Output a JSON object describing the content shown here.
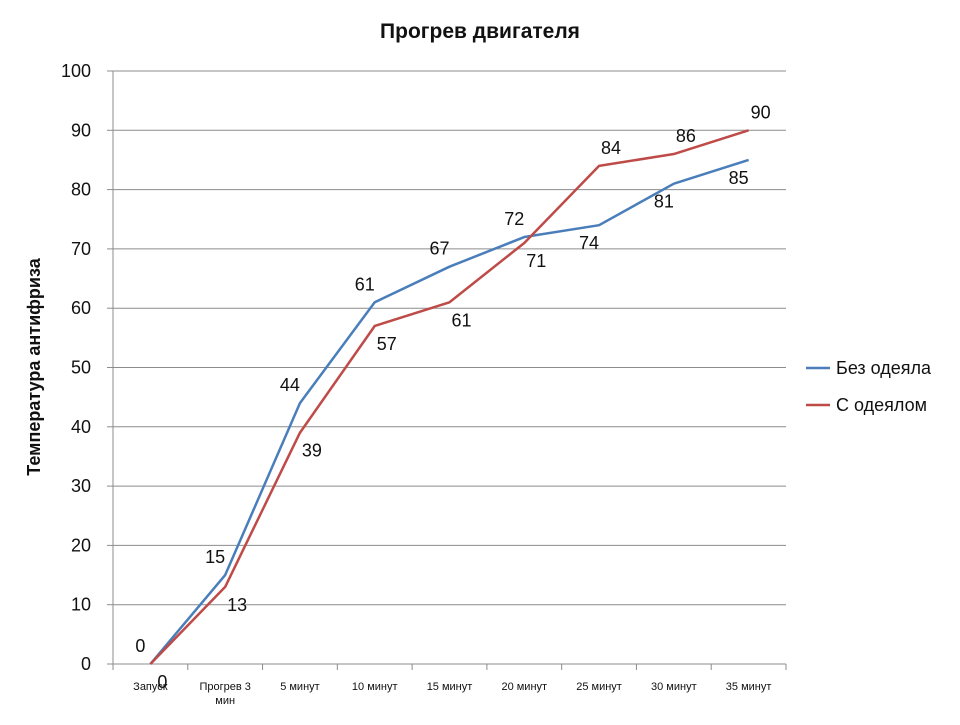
{
  "chart_data": {
    "type": "line",
    "title": "Прогрев двигателя",
    "xlabel": "",
    "ylabel": "Температура антифриза",
    "ylim": [
      0,
      100
    ],
    "yticks": [
      0,
      10,
      20,
      30,
      40,
      50,
      60,
      70,
      80,
      90,
      100
    ],
    "categories": [
      [
        "Запуск"
      ],
      [
        "Прогрев 3",
        "мин"
      ],
      [
        "5 минут"
      ],
      [
        "10 минут"
      ],
      [
        "15 минут"
      ],
      [
        "20 минут"
      ],
      [
        "25 минут"
      ],
      [
        "30 минут"
      ],
      [
        "35 минут"
      ]
    ],
    "grid": true,
    "legend_position": "right",
    "series": [
      {
        "name": "Без одеяла",
        "color": "#4a7ebb",
        "values": [
          0,
          15,
          44,
          61,
          67,
          72,
          74,
          81,
          85
        ],
        "label_side": [
          "above",
          "above",
          "above",
          "above",
          "above",
          "above",
          "below",
          "below",
          "below"
        ]
      },
      {
        "name": "С одеялом",
        "color": "#be4b48",
        "values": [
          0,
          13,
          39,
          57,
          61,
          71,
          84,
          86,
          90
        ],
        "label_side": [
          "below",
          "below",
          "below",
          "below",
          "below",
          "below",
          "above",
          "above",
          "above"
        ]
      }
    ]
  }
}
